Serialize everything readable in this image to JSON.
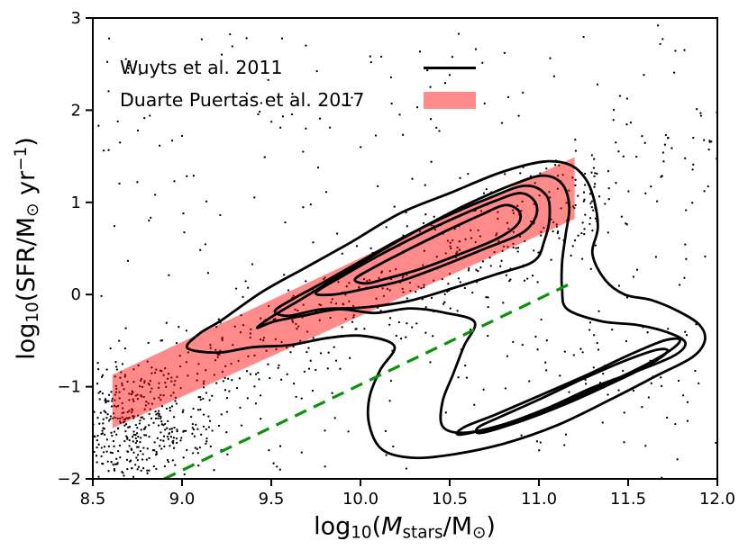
{
  "chart_data": {
    "type": "scatter",
    "title": "",
    "xlabel_parts": [
      {
        "t": "log"
      },
      {
        "t": "10",
        "s": "sub"
      },
      {
        "t": "("
      },
      {
        "t": "M",
        "s": "it"
      },
      {
        "t": "stars",
        "s": "sub"
      },
      {
        "t": "/M"
      },
      {
        "t": "⊙",
        "s": "sub"
      },
      {
        "t": ")"
      }
    ],
    "ylabel_parts": [
      {
        "t": "log"
      },
      {
        "t": "10",
        "s": "sub"
      },
      {
        "t": "(SFR/M"
      },
      {
        "t": "⊙",
        "s": "sub"
      },
      {
        "t": " yr"
      },
      {
        "t": "−1",
        "s": "sup"
      },
      {
        "t": ")"
      }
    ],
    "xlim": [
      8.5,
      12.0
    ],
    "ylim": [
      -2,
      3
    ],
    "x_ticks": {
      "values": [
        8.5,
        9.0,
        9.5,
        10.0,
        10.5,
        11.0,
        11.5,
        12.0
      ],
      "labels": [
        "8.5",
        "9.0",
        "9.5",
        "10.0",
        "10.5",
        "11.0",
        "11.5",
        "12.0"
      ]
    },
    "y_ticks": {
      "values": [
        -2,
        -1,
        0,
        1,
        2,
        3
      ],
      "labels": [
        "−2",
        "−1",
        "0",
        "1",
        "2",
        "3"
      ]
    },
    "grid": false,
    "legend_position": "upper-left, frameless",
    "legend": [
      {
        "label": "Wuyts et al. 2011",
        "marker": "line",
        "color": "#000000"
      },
      {
        "label": "Duarte Puertas et al. 2017",
        "marker": "patch",
        "color": "#FF0000",
        "opacity": 0.46
      }
    ],
    "band": {
      "name": "Duarte Puertas et al. 2017 SFR–M* relation (shaded band)",
      "color": "#FF0000",
      "opacity": 0.46,
      "polygon": [
        [
          8.61,
          -0.87
        ],
        [
          11.2,
          1.49
        ],
        [
          11.2,
          0.82
        ],
        [
          8.61,
          -1.45
        ]
      ]
    },
    "dashed_line": {
      "name": "green dashed reference line",
      "color": "#0a930a",
      "style": "dashed",
      "width": 3.2,
      "points": [
        [
          8.9,
          -2.0
        ],
        [
          11.2,
          0.14
        ]
      ]
    },
    "contours": {
      "name": "Wuyts et al. 2011 galaxy density contours",
      "color": "#000000",
      "line_width": 2.8,
      "levels": [
        [
          [
            9.03,
            -0.58
          ],
          [
            9.1,
            -0.42
          ],
          [
            9.22,
            -0.28
          ],
          [
            9.45,
            0.03
          ],
          [
            9.7,
            0.3
          ],
          [
            9.95,
            0.57
          ],
          [
            10.22,
            0.88
          ],
          [
            10.5,
            1.1
          ],
          [
            10.78,
            1.32
          ],
          [
            11.02,
            1.44
          ],
          [
            11.17,
            1.41
          ],
          [
            11.26,
            1.26
          ],
          [
            11.31,
            1.02
          ],
          [
            11.33,
            0.72
          ],
          [
            11.3,
            0.44
          ],
          [
            11.37,
            0.16
          ],
          [
            11.48,
            0.0
          ],
          [
            11.63,
            -0.06
          ],
          [
            11.78,
            -0.18
          ],
          [
            11.9,
            -0.33
          ],
          [
            11.93,
            -0.5
          ],
          [
            11.86,
            -0.68
          ],
          [
            11.66,
            -0.88
          ],
          [
            11.4,
            -1.14
          ],
          [
            11.1,
            -1.42
          ],
          [
            10.8,
            -1.62
          ],
          [
            10.5,
            -1.74
          ],
          [
            10.28,
            -1.77
          ],
          [
            10.12,
            -1.68
          ],
          [
            10.05,
            -1.42
          ],
          [
            10.05,
            -1.12
          ],
          [
            10.11,
            -0.82
          ],
          [
            10.19,
            -0.56
          ],
          [
            10.02,
            -0.45
          ],
          [
            9.82,
            -0.47
          ],
          [
            9.6,
            -0.55
          ],
          [
            9.4,
            -0.57
          ],
          [
            9.2,
            -0.63
          ]
        ],
        [
          [
            9.42,
            -0.36
          ],
          [
            9.52,
            -0.22
          ],
          [
            9.66,
            -0.06
          ],
          [
            9.88,
            0.2
          ],
          [
            10.12,
            0.48
          ],
          [
            10.36,
            0.74
          ],
          [
            10.6,
            0.98
          ],
          [
            10.85,
            1.19
          ],
          [
            11.02,
            1.29
          ],
          [
            11.13,
            1.2
          ],
          [
            11.17,
            0.95
          ],
          [
            11.15,
            0.65
          ],
          [
            11.13,
            0.35
          ],
          [
            11.13,
            0.05
          ],
          [
            11.16,
            -0.16
          ],
          [
            11.35,
            -0.29
          ],
          [
            11.55,
            -0.33
          ],
          [
            11.72,
            -0.41
          ],
          [
            11.82,
            -0.52
          ],
          [
            11.76,
            -0.66
          ],
          [
            11.55,
            -0.83
          ],
          [
            11.3,
            -1.01
          ],
          [
            11.05,
            -1.23
          ],
          [
            10.8,
            -1.41
          ],
          [
            10.58,
            -1.5
          ],
          [
            10.46,
            -1.43
          ],
          [
            10.46,
            -1.16
          ],
          [
            10.52,
            -0.86
          ],
          [
            10.58,
            -0.56
          ],
          [
            10.64,
            -0.3
          ],
          [
            10.48,
            -0.2
          ],
          [
            10.28,
            -0.15
          ],
          [
            10.08,
            -0.2
          ],
          [
            9.88,
            -0.16
          ],
          [
            9.68,
            -0.23
          ],
          [
            9.52,
            -0.29
          ]
        ],
        [
          [
            9.52,
            -0.18
          ],
          [
            9.62,
            -0.05
          ],
          [
            9.8,
            0.14
          ],
          [
            10.0,
            0.36
          ],
          [
            10.22,
            0.6
          ],
          [
            10.46,
            0.83
          ],
          [
            10.7,
            1.03
          ],
          [
            10.92,
            1.18
          ],
          [
            11.04,
            1.08
          ],
          [
            11.06,
            0.85
          ],
          [
            11.03,
            0.58
          ],
          [
            10.97,
            0.36
          ],
          [
            10.76,
            0.22
          ],
          [
            10.52,
            0.07
          ],
          [
            10.27,
            -0.07
          ],
          [
            10.02,
            -0.14
          ],
          [
            9.78,
            -0.16
          ],
          [
            9.6,
            -0.23
          ]
        ],
        [
          [
            9.75,
            0.02
          ],
          [
            9.9,
            0.2
          ],
          [
            10.1,
            0.42
          ],
          [
            10.32,
            0.64
          ],
          [
            10.55,
            0.85
          ],
          [
            10.76,
            1.02
          ],
          [
            10.9,
            1.1
          ],
          [
            10.98,
            1.0
          ],
          [
            10.98,
            0.83
          ],
          [
            10.9,
            0.66
          ],
          [
            10.7,
            0.5
          ],
          [
            10.47,
            0.32
          ],
          [
            10.23,
            0.15
          ],
          [
            10.02,
            0.06
          ],
          [
            9.85,
            0.0
          ]
        ],
        [
          [
            9.97,
            0.17
          ],
          [
            10.1,
            0.32
          ],
          [
            10.28,
            0.5
          ],
          [
            10.48,
            0.69
          ],
          [
            10.67,
            0.86
          ],
          [
            10.81,
            0.97
          ],
          [
            10.89,
            0.9
          ],
          [
            10.88,
            0.76
          ],
          [
            10.76,
            0.6
          ],
          [
            10.56,
            0.44
          ],
          [
            10.34,
            0.28
          ],
          [
            10.14,
            0.17
          ],
          [
            10.03,
            0.12
          ]
        ],
        [
          [
            10.56,
            -1.52
          ],
          [
            10.82,
            -1.4
          ],
          [
            11.08,
            -1.22
          ],
          [
            11.34,
            -1.0
          ],
          [
            11.58,
            -0.78
          ],
          [
            11.74,
            -0.6
          ],
          [
            11.79,
            -0.49
          ],
          [
            11.7,
            -0.5
          ],
          [
            11.5,
            -0.66
          ],
          [
            11.26,
            -0.88
          ],
          [
            11.0,
            -1.1
          ],
          [
            10.76,
            -1.3
          ],
          [
            10.58,
            -1.44
          ]
        ],
        [
          [
            10.68,
            -1.5
          ],
          [
            10.92,
            -1.36
          ],
          [
            11.16,
            -1.18
          ],
          [
            11.4,
            -0.97
          ],
          [
            11.6,
            -0.78
          ],
          [
            11.72,
            -0.62
          ],
          [
            11.66,
            -0.6
          ],
          [
            11.48,
            -0.72
          ],
          [
            11.24,
            -0.92
          ],
          [
            11.0,
            -1.14
          ],
          [
            10.78,
            -1.33
          ],
          [
            10.66,
            -1.44
          ]
        ]
      ]
    },
    "scatter": {
      "name": "individual galaxies",
      "color": "#000000",
      "marker_radius": 1.15,
      "seed": 42,
      "components": [
        {
          "name": "low-mass-cloud",
          "type": "normal",
          "n": 380,
          "mean": [
            8.72,
            -1.45
          ],
          "sigma": [
            0.22,
            0.32
          ]
        },
        {
          "name": "main-sequence-cloud",
          "type": "linear",
          "n": 430,
          "x_range": [
            8.55,
            11.35
          ],
          "slope": 0.9,
          "intercept": -9.1,
          "sigma_y": 0.32
        },
        {
          "name": "field-sprinkle",
          "type": "uniform",
          "n": 290,
          "x_range": [
            8.5,
            12.0
          ],
          "y_range": [
            -2.0,
            2.95
          ]
        },
        {
          "name": "passive-cloud",
          "type": "normal",
          "n": 45,
          "mean": [
            11.4,
            -0.8
          ],
          "sigma": [
            0.3,
            0.3
          ]
        },
        {
          "name": "high-mass-stream",
          "type": "linear",
          "n": 55,
          "x_range": [
            11.0,
            12.0
          ],
          "slope": 0.9,
          "intercept": -8.85,
          "sigma_y": 0.4
        }
      ]
    }
  }
}
